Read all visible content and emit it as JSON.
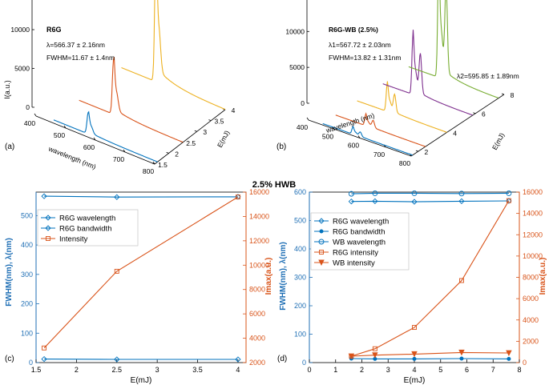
{
  "figure_title": "2.5% HWB",
  "colors": {
    "blue": "#0072BD",
    "red": "#D95319",
    "yellow": "#EDB120",
    "purple": "#7E2F8E",
    "green": "#77AC30",
    "axis": "#000000",
    "blue_axis": "#1f6fb5",
    "orange_axis": "#d9541a"
  },
  "chart_data": [
    {
      "panel": "(a)",
      "type": "line",
      "title": "",
      "annotation": [
        "R6G",
        "λ=566.37 ± 2.16nm",
        "FWHM=11.67 ± 1.4nm"
      ],
      "ylabel": "I(a.u.)",
      "xlabel": "wavelength (nm)",
      "zlabel": "E(mJ)",
      "y_ticks": [
        0,
        5000,
        10000
      ],
      "x_ticks": [
        400,
        500,
        600,
        700,
        800
      ],
      "z_ticks": [
        1.5,
        2,
        2.5,
        3,
        3.5,
        4
      ],
      "ylim": [
        0,
        16500
      ],
      "xlim": [
        400,
        800
      ],
      "zlim": [
        1.5,
        4
      ],
      "series": [
        {
          "name": "E=1.6 mJ",
          "energy": 1.6,
          "peak_wavelength": 566,
          "peak": 2500,
          "color": "blue"
        },
        {
          "name": "E=2.5 mJ",
          "energy": 2.5,
          "peak_wavelength": 566,
          "peak": 6500,
          "color": "red"
        },
        {
          "name": "E=4 mJ",
          "energy": 4.0,
          "peak_wavelength": 566,
          "peak": 15500,
          "color": "yellow"
        }
      ]
    },
    {
      "panel": "(b)",
      "type": "line",
      "title": "",
      "annotation": [
        "R6G-WB  (2.5%)",
        "λ1=567.72 ± 2.03nm",
        "FWHM=13.82 ± 1.31nm"
      ],
      "annotation_right": "λ2=595.85 ± 1.89nm",
      "ylabel": "",
      "xlabel": "wavelength (nm)",
      "zlabel": "E(mJ)",
      "y_ticks": [
        0,
        5000,
        10000,
        15000
      ],
      "x_ticks": [
        400,
        500,
        600,
        700,
        800
      ],
      "z_ticks": [
        2,
        4,
        6,
        8
      ],
      "ylim": [
        0,
        16500
      ],
      "xlim": [
        400,
        800
      ],
      "zlim": [
        1.5,
        8
      ],
      "series": [
        {
          "name": "E=1.6 mJ",
          "energy": 1.6,
          "peak_wavelength": 567,
          "peak": 900,
          "second_peak": 600,
          "color": "blue"
        },
        {
          "name": "E=2.5 mJ",
          "energy": 2.5,
          "peak_wavelength": 567,
          "peak": 1400,
          "second_peak": 1000,
          "color": "red"
        },
        {
          "name": "E=4 mJ",
          "energy": 4.0,
          "peak_wavelength": 567,
          "peak": 3500,
          "second_peak": 2500,
          "color": "yellow"
        },
        {
          "name": "E=5.8 mJ",
          "energy": 5.8,
          "peak_wavelength": 567,
          "peak": 7500,
          "second_peak": 5500,
          "color": "purple"
        },
        {
          "name": "E=7.6 mJ",
          "energy": 7.6,
          "peak_wavelength": 567,
          "peak": 14500,
          "second_peak": 12000,
          "color": "green"
        }
      ]
    },
    {
      "panel": "(c)",
      "type": "line",
      "title": "",
      "xlabel": "E(mJ)",
      "ylabel_left": "FWHM(nm),  λ(nm)",
      "ylabel_right": "Imax(a.u.)",
      "x_ticks": [
        1.5,
        2,
        2.5,
        3,
        3.5,
        4
      ],
      "y_left_ticks": [
        0,
        100,
        200,
        300,
        400,
        500
      ],
      "y_right_ticks": [
        2000,
        4000,
        6000,
        8000,
        10000,
        12000,
        14000,
        16000
      ],
      "xlim": [
        1.5,
        4.1
      ],
      "ylim_left": [
        0,
        580
      ],
      "ylim_right": [
        2000,
        16000
      ],
      "legend_position": "top-left",
      "series": [
        {
          "name": "R6G wavelength",
          "axis": "left",
          "marker": "diamond",
          "color": "blue",
          "x": [
            1.6,
            2.5,
            4
          ],
          "y": [
            566,
            563,
            564
          ]
        },
        {
          "name": "R6G bandwidth",
          "axis": "left",
          "marker": "diamond",
          "color": "blue",
          "x": [
            1.6,
            2.5,
            4
          ],
          "y": [
            12,
            11,
            11
          ]
        },
        {
          "name": "Intensity",
          "axis": "right",
          "marker": "square",
          "color": "red",
          "x": [
            1.6,
            2.5,
            4
          ],
          "y": [
            3200,
            9500,
            15600
          ]
        }
      ]
    },
    {
      "panel": "(d)",
      "type": "line",
      "title": "",
      "xlabel": "E(mJ)",
      "ylabel_left": "FWHM(nm),  λ(nm)",
      "ylabel_right": "Imax(a.u.)",
      "x_ticks": [
        0,
        1,
        2,
        3,
        4,
        5,
        6,
        7,
        8
      ],
      "y_left_ticks": [
        0,
        100,
        200,
        300,
        400,
        500,
        600
      ],
      "y_right_ticks": [
        0,
        2000,
        4000,
        6000,
        8000,
        10000,
        12000,
        14000,
        16000
      ],
      "xlim": [
        0,
        8
      ],
      "ylim_left": [
        0,
        600
      ],
      "ylim_right": [
        0,
        16000
      ],
      "legend_position": "top-left",
      "series": [
        {
          "name": "R6G wavelength",
          "axis": "left",
          "marker": "diamond",
          "color": "blue",
          "x": [
            1.6,
            2.5,
            4,
            5.8,
            7.6
          ],
          "y": [
            567,
            568,
            566,
            568,
            569
          ]
        },
        {
          "name": "R6G bandwidth",
          "axis": "left",
          "marker": "dot",
          "color": "blue",
          "x": [
            1.6,
            2.5,
            4,
            5.8,
            7.6
          ],
          "y": [
            14,
            13,
            13,
            14,
            13
          ]
        },
        {
          "name": "WB wavelength",
          "axis": "left",
          "marker": "circle",
          "color": "blue",
          "x": [
            1.6,
            2.5,
            4,
            5.8,
            7.6
          ],
          "y": [
            594,
            596,
            596,
            595,
            596
          ]
        },
        {
          "name": "R6G intensity",
          "axis": "right",
          "marker": "square",
          "color": "red",
          "x": [
            1.6,
            2.5,
            4,
            5.8,
            7.6
          ],
          "y": [
            600,
            1300,
            3300,
            7700,
            15200
          ]
        },
        {
          "name": "WB intensity",
          "axis": "right",
          "marker": "triangle",
          "color": "red",
          "x": [
            1.6,
            2.5,
            4,
            5.8,
            7.6
          ],
          "y": [
            600,
            700,
            800,
            950,
            900
          ]
        }
      ]
    }
  ]
}
